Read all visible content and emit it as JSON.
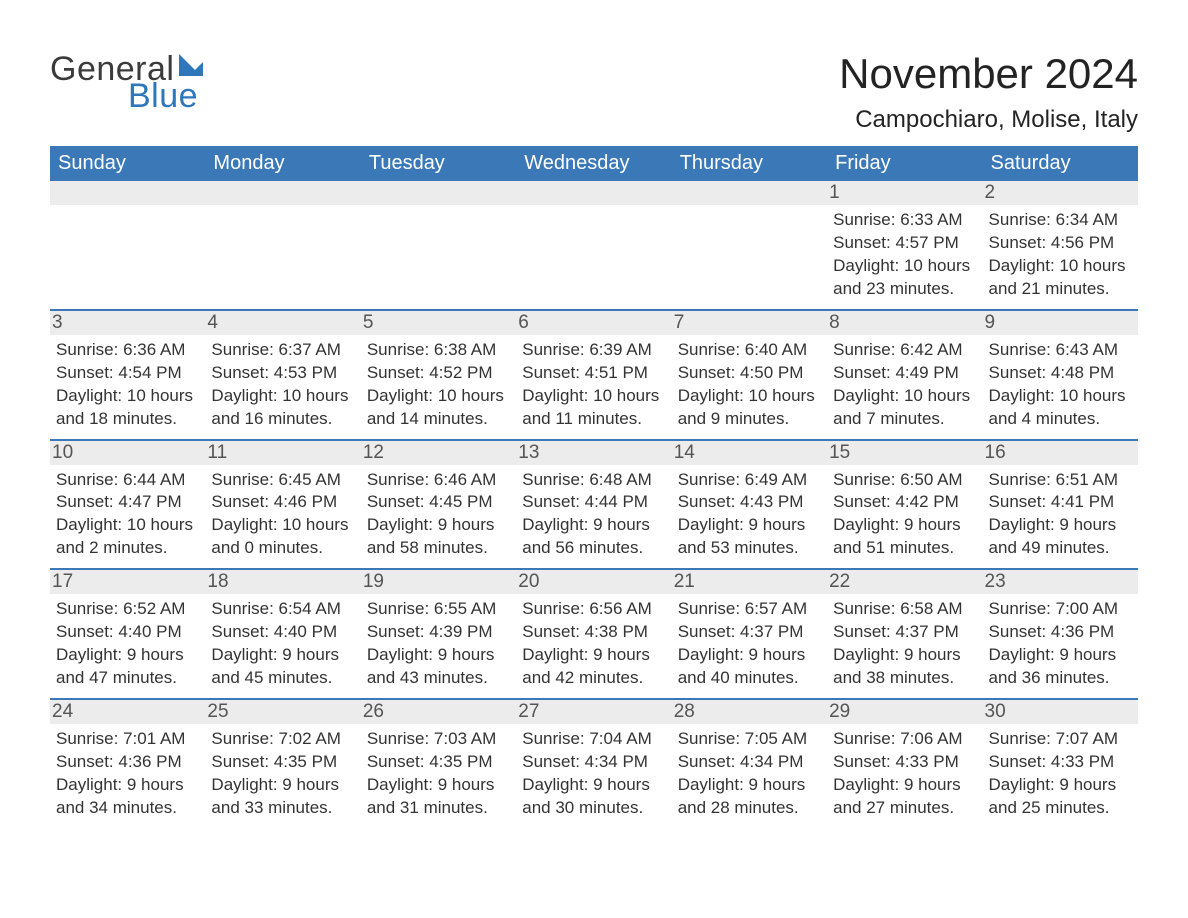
{
  "logo": {
    "text1": "General",
    "text2": "Blue",
    "text_color": "#3b3b3b",
    "accent_color": "#2f77bb"
  },
  "title": {
    "month": "November 2024",
    "location": "Campochiaro, Molise, Italy"
  },
  "colors": {
    "header_bg": "#3a78b8",
    "header_text": "#ffffff",
    "daynum_bg": "#ececec",
    "daynum_text": "#555555",
    "body_text": "#333333",
    "row_border": "#3a78b8",
    "page_bg": "#ffffff"
  },
  "fonts": {
    "title_size_pt": 42,
    "location_size_pt": 24,
    "dow_size_pt": 20,
    "daynum_size_pt": 19,
    "body_size_pt": 17
  },
  "days_of_week": [
    "Sunday",
    "Monday",
    "Tuesday",
    "Wednesday",
    "Thursday",
    "Friday",
    "Saturday"
  ],
  "weeks": [
    [
      null,
      null,
      null,
      null,
      null,
      {
        "n": "1",
        "sunrise": "Sunrise: 6:33 AM",
        "sunset": "Sunset: 4:57 PM",
        "dl1": "Daylight: 10 hours",
        "dl2": "and 23 minutes."
      },
      {
        "n": "2",
        "sunrise": "Sunrise: 6:34 AM",
        "sunset": "Sunset: 4:56 PM",
        "dl1": "Daylight: 10 hours",
        "dl2": "and 21 minutes."
      }
    ],
    [
      {
        "n": "3",
        "sunrise": "Sunrise: 6:36 AM",
        "sunset": "Sunset: 4:54 PM",
        "dl1": "Daylight: 10 hours",
        "dl2": "and 18 minutes."
      },
      {
        "n": "4",
        "sunrise": "Sunrise: 6:37 AM",
        "sunset": "Sunset: 4:53 PM",
        "dl1": "Daylight: 10 hours",
        "dl2": "and 16 minutes."
      },
      {
        "n": "5",
        "sunrise": "Sunrise: 6:38 AM",
        "sunset": "Sunset: 4:52 PM",
        "dl1": "Daylight: 10 hours",
        "dl2": "and 14 minutes."
      },
      {
        "n": "6",
        "sunrise": "Sunrise: 6:39 AM",
        "sunset": "Sunset: 4:51 PM",
        "dl1": "Daylight: 10 hours",
        "dl2": "and 11 minutes."
      },
      {
        "n": "7",
        "sunrise": "Sunrise: 6:40 AM",
        "sunset": "Sunset: 4:50 PM",
        "dl1": "Daylight: 10 hours",
        "dl2": "and 9 minutes."
      },
      {
        "n": "8",
        "sunrise": "Sunrise: 6:42 AM",
        "sunset": "Sunset: 4:49 PM",
        "dl1": "Daylight: 10 hours",
        "dl2": "and 7 minutes."
      },
      {
        "n": "9",
        "sunrise": "Sunrise: 6:43 AM",
        "sunset": "Sunset: 4:48 PM",
        "dl1": "Daylight: 10 hours",
        "dl2": "and 4 minutes."
      }
    ],
    [
      {
        "n": "10",
        "sunrise": "Sunrise: 6:44 AM",
        "sunset": "Sunset: 4:47 PM",
        "dl1": "Daylight: 10 hours",
        "dl2": "and 2 minutes."
      },
      {
        "n": "11",
        "sunrise": "Sunrise: 6:45 AM",
        "sunset": "Sunset: 4:46 PM",
        "dl1": "Daylight: 10 hours",
        "dl2": "and 0 minutes."
      },
      {
        "n": "12",
        "sunrise": "Sunrise: 6:46 AM",
        "sunset": "Sunset: 4:45 PM",
        "dl1": "Daylight: 9 hours",
        "dl2": "and 58 minutes."
      },
      {
        "n": "13",
        "sunrise": "Sunrise: 6:48 AM",
        "sunset": "Sunset: 4:44 PM",
        "dl1": "Daylight: 9 hours",
        "dl2": "and 56 minutes."
      },
      {
        "n": "14",
        "sunrise": "Sunrise: 6:49 AM",
        "sunset": "Sunset: 4:43 PM",
        "dl1": "Daylight: 9 hours",
        "dl2": "and 53 minutes."
      },
      {
        "n": "15",
        "sunrise": "Sunrise: 6:50 AM",
        "sunset": "Sunset: 4:42 PM",
        "dl1": "Daylight: 9 hours",
        "dl2": "and 51 minutes."
      },
      {
        "n": "16",
        "sunrise": "Sunrise: 6:51 AM",
        "sunset": "Sunset: 4:41 PM",
        "dl1": "Daylight: 9 hours",
        "dl2": "and 49 minutes."
      }
    ],
    [
      {
        "n": "17",
        "sunrise": "Sunrise: 6:52 AM",
        "sunset": "Sunset: 4:40 PM",
        "dl1": "Daylight: 9 hours",
        "dl2": "and 47 minutes."
      },
      {
        "n": "18",
        "sunrise": "Sunrise: 6:54 AM",
        "sunset": "Sunset: 4:40 PM",
        "dl1": "Daylight: 9 hours",
        "dl2": "and 45 minutes."
      },
      {
        "n": "19",
        "sunrise": "Sunrise: 6:55 AM",
        "sunset": "Sunset: 4:39 PM",
        "dl1": "Daylight: 9 hours",
        "dl2": "and 43 minutes."
      },
      {
        "n": "20",
        "sunrise": "Sunrise: 6:56 AM",
        "sunset": "Sunset: 4:38 PM",
        "dl1": "Daylight: 9 hours",
        "dl2": "and 42 minutes."
      },
      {
        "n": "21",
        "sunrise": "Sunrise: 6:57 AM",
        "sunset": "Sunset: 4:37 PM",
        "dl1": "Daylight: 9 hours",
        "dl2": "and 40 minutes."
      },
      {
        "n": "22",
        "sunrise": "Sunrise: 6:58 AM",
        "sunset": "Sunset: 4:37 PM",
        "dl1": "Daylight: 9 hours",
        "dl2": "and 38 minutes."
      },
      {
        "n": "23",
        "sunrise": "Sunrise: 7:00 AM",
        "sunset": "Sunset: 4:36 PM",
        "dl1": "Daylight: 9 hours",
        "dl2": "and 36 minutes."
      }
    ],
    [
      {
        "n": "24",
        "sunrise": "Sunrise: 7:01 AM",
        "sunset": "Sunset: 4:36 PM",
        "dl1": "Daylight: 9 hours",
        "dl2": "and 34 minutes."
      },
      {
        "n": "25",
        "sunrise": "Sunrise: 7:02 AM",
        "sunset": "Sunset: 4:35 PM",
        "dl1": "Daylight: 9 hours",
        "dl2": "and 33 minutes."
      },
      {
        "n": "26",
        "sunrise": "Sunrise: 7:03 AM",
        "sunset": "Sunset: 4:35 PM",
        "dl1": "Daylight: 9 hours",
        "dl2": "and 31 minutes."
      },
      {
        "n": "27",
        "sunrise": "Sunrise: 7:04 AM",
        "sunset": "Sunset: 4:34 PM",
        "dl1": "Daylight: 9 hours",
        "dl2": "and 30 minutes."
      },
      {
        "n": "28",
        "sunrise": "Sunrise: 7:05 AM",
        "sunset": "Sunset: 4:34 PM",
        "dl1": "Daylight: 9 hours",
        "dl2": "and 28 minutes."
      },
      {
        "n": "29",
        "sunrise": "Sunrise: 7:06 AM",
        "sunset": "Sunset: 4:33 PM",
        "dl1": "Daylight: 9 hours",
        "dl2": "and 27 minutes."
      },
      {
        "n": "30",
        "sunrise": "Sunrise: 7:07 AM",
        "sunset": "Sunset: 4:33 PM",
        "dl1": "Daylight: 9 hours",
        "dl2": "and 25 minutes."
      }
    ]
  ]
}
